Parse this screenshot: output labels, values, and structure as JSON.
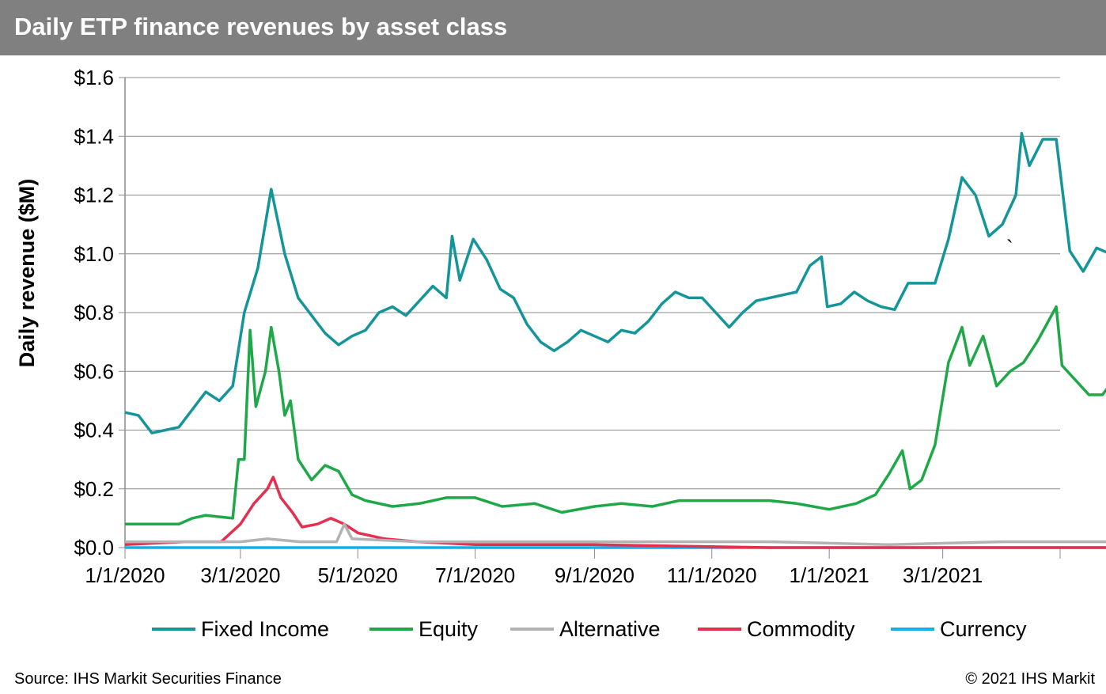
{
  "header": {
    "title": "Daily ETP finance revenues by asset class"
  },
  "footer": {
    "source": "Source: IHS Markit Securities Finance",
    "copyright": "© 2021 IHS Markit"
  },
  "chart_data": {
    "type": "line",
    "title": "Daily ETP finance revenues by asset class",
    "xlabel": "",
    "ylabel": "Daily revenue ($M)",
    "ylim": [
      0,
      1.6
    ],
    "y_ticks": [
      "$0.0",
      "$0.2",
      "$0.4",
      "$0.6",
      "$0.8",
      "$1.0",
      "$1.2",
      "$1.4",
      "$1.6"
    ],
    "x_ticks": [
      "1/1/2020",
      "3/1/2020",
      "5/1/2020",
      "7/1/2020",
      "9/1/2020",
      "11/1/2020",
      "1/1/2021",
      "3/1/2021"
    ],
    "x_range": [
      "1/1/2020",
      "5/1/2021"
    ],
    "grid": "horizontal",
    "legend_position": "bottom",
    "series": [
      {
        "name": "Fixed Income",
        "color": "#14959a",
        "points": [
          [
            "1/1/2020",
            0.46
          ],
          [
            "1/8/2020",
            0.45
          ],
          [
            "1/15/2020",
            0.39
          ],
          [
            "1/22/2020",
            0.4
          ],
          [
            "1/29/2020",
            0.41
          ],
          [
            "2/5/2020",
            0.47
          ],
          [
            "2/12/2020",
            0.53
          ],
          [
            "2/19/2020",
            0.5
          ],
          [
            "2/26/2020",
            0.55
          ],
          [
            "3/3/2020",
            0.8
          ],
          [
            "3/10/2020",
            0.95
          ],
          [
            "3/17/2020",
            1.22
          ],
          [
            "3/24/2020",
            1.0
          ],
          [
            "3/31/2020",
            0.85
          ],
          [
            "4/7/2020",
            0.79
          ],
          [
            "4/14/2020",
            0.73
          ],
          [
            "4/21/2020",
            0.69
          ],
          [
            "4/28/2020",
            0.72
          ],
          [
            "5/5/2020",
            0.74
          ],
          [
            "5/12/2020",
            0.8
          ],
          [
            "5/19/2020",
            0.82
          ],
          [
            "5/26/2020",
            0.79
          ],
          [
            "6/2/2020",
            0.84
          ],
          [
            "6/9/2020",
            0.89
          ],
          [
            "6/16/2020",
            0.85
          ],
          [
            "6/19/2020",
            1.06
          ],
          [
            "6/23/2020",
            0.91
          ],
          [
            "6/30/2020",
            1.05
          ],
          [
            "7/7/2020",
            0.98
          ],
          [
            "7/14/2020",
            0.88
          ],
          [
            "7/21/2020",
            0.85
          ],
          [
            "7/28/2020",
            0.76
          ],
          [
            "8/4/2020",
            0.7
          ],
          [
            "8/11/2020",
            0.67
          ],
          [
            "8/18/2020",
            0.7
          ],
          [
            "8/25/2020",
            0.74
          ],
          [
            "9/1/2020",
            0.72
          ],
          [
            "9/8/2020",
            0.7
          ],
          [
            "9/15/2020",
            0.74
          ],
          [
            "9/22/2020",
            0.73
          ],
          [
            "9/29/2020",
            0.77
          ],
          [
            "10/6/2020",
            0.83
          ],
          [
            "10/13/2020",
            0.87
          ],
          [
            "10/20/2020",
            0.85
          ],
          [
            "10/27/2020",
            0.85
          ],
          [
            "11/3/2020",
            0.8
          ],
          [
            "11/10/2020",
            0.75
          ],
          [
            "11/17/2020",
            0.8
          ],
          [
            "11/24/2020",
            0.84
          ],
          [
            "12/1/2020",
            0.85
          ],
          [
            "12/8/2020",
            0.86
          ],
          [
            "12/15/2020",
            0.87
          ],
          [
            "12/22/2020",
            0.96
          ],
          [
            "12/28/2020",
            0.99
          ],
          [
            "12/31/2020",
            0.82
          ],
          [
            "1/7/2021",
            0.83
          ],
          [
            "1/14/2021",
            0.87
          ],
          [
            "1/21/2021",
            0.84
          ],
          [
            "1/28/2021",
            0.82
          ],
          [
            "2/4/2021",
            0.81
          ],
          [
            "2/11/2021",
            0.9
          ],
          [
            "2/18/2021",
            0.9
          ],
          [
            "2/25/2021",
            0.9
          ],
          [
            "3/4/2021",
            1.05
          ],
          [
            "3/11/2021",
            1.26
          ],
          [
            "3/18/2021",
            1.2
          ],
          [
            "3/25/2021",
            1.06
          ],
          [
            "4/1/2021",
            1.1
          ],
          [
            "4/8/2021",
            1.2
          ],
          [
            "4/11/2021",
            1.41
          ],
          [
            "4/15/2021",
            1.3
          ],
          [
            "4/22/2021",
            1.39
          ],
          [
            "4/29/2021",
            1.39
          ],
          [
            "5/6/2021",
            1.01
          ],
          [
            "5/13/2021",
            0.94
          ],
          [
            "5/20/2021",
            1.02
          ],
          [
            "5/27/2021",
            1.0
          ],
          [
            "5/31/2021",
            0.96
          ]
        ]
      },
      {
        "name": "Equity",
        "color": "#1fa848",
        "points": [
          [
            "1/1/2020",
            0.08
          ],
          [
            "1/15/2020",
            0.08
          ],
          [
            "1/29/2020",
            0.08
          ],
          [
            "2/5/2020",
            0.1
          ],
          [
            "2/12/2020",
            0.11
          ],
          [
            "2/26/2020",
            0.1
          ],
          [
            "2/29/2020",
            0.3
          ],
          [
            "3/3/2020",
            0.3
          ],
          [
            "3/6/2020",
            0.74
          ],
          [
            "3/9/2020",
            0.48
          ],
          [
            "3/14/2020",
            0.6
          ],
          [
            "3/17/2020",
            0.75
          ],
          [
            "3/21/2020",
            0.6
          ],
          [
            "3/24/2020",
            0.45
          ],
          [
            "3/27/2020",
            0.5
          ],
          [
            "3/31/2020",
            0.3
          ],
          [
            "4/7/2020",
            0.23
          ],
          [
            "4/14/2020",
            0.28
          ],
          [
            "4/21/2020",
            0.26
          ],
          [
            "4/28/2020",
            0.18
          ],
          [
            "5/5/2020",
            0.16
          ],
          [
            "5/19/2020",
            0.14
          ],
          [
            "6/2/2020",
            0.15
          ],
          [
            "6/16/2020",
            0.17
          ],
          [
            "7/1/2020",
            0.17
          ],
          [
            "7/15/2020",
            0.14
          ],
          [
            "8/1/2020",
            0.15
          ],
          [
            "8/15/2020",
            0.12
          ],
          [
            "9/1/2020",
            0.14
          ],
          [
            "9/15/2020",
            0.15
          ],
          [
            "10/1/2020",
            0.14
          ],
          [
            "10/15/2020",
            0.16
          ],
          [
            "11/1/2020",
            0.16
          ],
          [
            "11/15/2020",
            0.16
          ],
          [
            "12/1/2020",
            0.16
          ],
          [
            "12/15/2020",
            0.15
          ],
          [
            "1/1/2021",
            0.13
          ],
          [
            "1/15/2021",
            0.15
          ],
          [
            "1/25/2021",
            0.18
          ],
          [
            "2/1/2021",
            0.25
          ],
          [
            "2/8/2021",
            0.33
          ],
          [
            "2/12/2021",
            0.2
          ],
          [
            "2/18/2021",
            0.23
          ],
          [
            "2/25/2021",
            0.35
          ],
          [
            "3/4/2021",
            0.63
          ],
          [
            "3/11/2021",
            0.75
          ],
          [
            "3/15/2021",
            0.62
          ],
          [
            "3/22/2021",
            0.72
          ],
          [
            "3/29/2021",
            0.55
          ],
          [
            "4/5/2021",
            0.6
          ],
          [
            "4/12/2021",
            0.63
          ],
          [
            "4/19/2021",
            0.7
          ],
          [
            "4/29/2021",
            0.82
          ],
          [
            "5/2/2021",
            0.62
          ],
          [
            "5/9/2021",
            0.57
          ],
          [
            "5/16/2021",
            0.52
          ],
          [
            "5/23/2021",
            0.52
          ],
          [
            "5/31/2021",
            0.59
          ]
        ]
      },
      {
        "name": "Alternative",
        "color": "#b3b3b3",
        "points": [
          [
            "1/1/2020",
            0.02
          ],
          [
            "2/1/2020",
            0.02
          ],
          [
            "3/1/2020",
            0.02
          ],
          [
            "3/15/2020",
            0.03
          ],
          [
            "4/1/2020",
            0.02
          ],
          [
            "4/20/2020",
            0.02
          ],
          [
            "4/24/2020",
            0.08
          ],
          [
            "4/28/2020",
            0.03
          ],
          [
            "6/1/2020",
            0.02
          ],
          [
            "7/1/2020",
            0.02
          ],
          [
            "8/1/2020",
            0.02
          ],
          [
            "10/1/2020",
            0.02
          ],
          [
            "12/1/2020",
            0.02
          ],
          [
            "2/1/2021",
            0.01
          ],
          [
            "4/1/2021",
            0.02
          ],
          [
            "5/31/2021",
            0.02
          ]
        ]
      },
      {
        "name": "Commodity",
        "color": "#e3304f",
        "points": [
          [
            "1/1/2020",
            0.01
          ],
          [
            "2/1/2020",
            0.02
          ],
          [
            "2/20/2020",
            0.02
          ],
          [
            "3/1/2020",
            0.08
          ],
          [
            "3/8/2020",
            0.15
          ],
          [
            "3/15/2020",
            0.2
          ],
          [
            "3/18/2020",
            0.24
          ],
          [
            "3/22/2020",
            0.17
          ],
          [
            "3/28/2020",
            0.12
          ],
          [
            "4/2/2020",
            0.07
          ],
          [
            "4/10/2020",
            0.08
          ],
          [
            "4/17/2020",
            0.1
          ],
          [
            "4/24/2020",
            0.08
          ],
          [
            "5/1/2020",
            0.05
          ],
          [
            "5/15/2020",
            0.03
          ],
          [
            "6/1/2020",
            0.02
          ],
          [
            "7/1/2020",
            0.01
          ],
          [
            "9/1/2020",
            0.01
          ],
          [
            "12/1/2020",
            0.0
          ],
          [
            "3/1/2021",
            0.0
          ],
          [
            "5/31/2021",
            0.0
          ]
        ]
      },
      {
        "name": "Currency",
        "color": "#12b0e8",
        "points": [
          [
            "1/1/2020",
            0.0
          ],
          [
            "6/1/2020",
            0.0
          ],
          [
            "1/1/2021",
            0.0
          ],
          [
            "5/31/2021",
            0.0
          ]
        ]
      }
    ],
    "annotations": [
      "`"
    ]
  }
}
